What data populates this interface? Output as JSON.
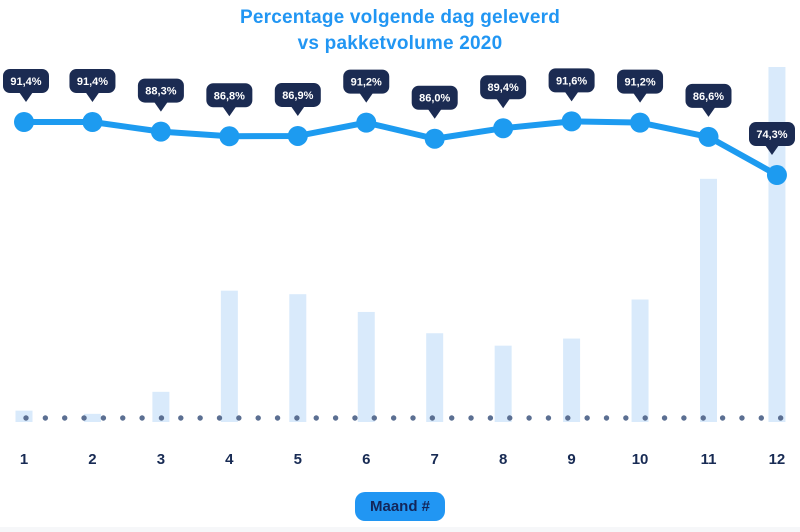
{
  "title": {
    "line1": "Percentage volgende dag geleverd",
    "line2": "vs pakketvolume 2020"
  },
  "chart_data": {
    "type": "line+bar combo",
    "categories": [
      "1",
      "2",
      "3",
      "4",
      "5",
      "6",
      "7",
      "8",
      "9",
      "10",
      "11",
      "12"
    ],
    "series": [
      {
        "name": "Percentage volgende dag geleverd",
        "type": "line",
        "unit": "%",
        "values": [
          91.4,
          91.4,
          88.3,
          86.8,
          86.9,
          91.2,
          86.0,
          89.4,
          91.6,
          91.2,
          86.6,
          74.3
        ],
        "labels": [
          "91,4%",
          "91,4%",
          "88,3%",
          "86,8%",
          "86,9%",
          "91,2%",
          "86,0%",
          "89,4%",
          "91,6%",
          "91,2%",
          "86,6%",
          "74,3%"
        ]
      },
      {
        "name": "Pakketvolume",
        "type": "bar",
        "unit": "relative volume (unlabeled in chart, max month = 100)",
        "values": [
          3.2,
          2.3,
          8.5,
          37,
          36,
          31,
          25,
          21.5,
          23.5,
          34.5,
          68.5,
          100
        ]
      }
    ],
    "xlabel": "Maand #",
    "ylabel": "",
    "legend_position": "none",
    "grid": "off",
    "baseline_style": "dotted"
  },
  "colors": {
    "accent_blue": "#1d9bf0",
    "title_blue": "#2196f3",
    "navy": "#182b54",
    "tooltip_bg": "#1b2b52",
    "tooltip_text": "#ffffff",
    "bar_fill": "#d9eafb",
    "dot_fill": "#5b6f92",
    "background": "#ffffff"
  }
}
